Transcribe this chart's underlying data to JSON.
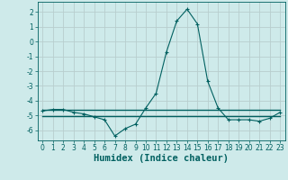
{
  "xlabel": "Humidex (Indice chaleur)",
  "background_color": "#ceeaea",
  "grid_color": "#b8cece",
  "line_color": "#006060",
  "x": [
    0,
    1,
    2,
    3,
    4,
    5,
    6,
    7,
    8,
    9,
    10,
    11,
    12,
    13,
    14,
    15,
    16,
    17,
    18,
    19,
    20,
    21,
    22,
    23
  ],
  "y_main": [
    -4.7,
    -4.6,
    -4.6,
    -4.8,
    -4.9,
    -5.1,
    -5.3,
    -6.4,
    -5.9,
    -5.6,
    -4.5,
    -3.5,
    -0.7,
    1.4,
    2.2,
    1.2,
    -2.7,
    -4.5,
    -5.3,
    -5.3,
    -5.3,
    -5.4,
    -5.2,
    -4.8
  ],
  "y_flat1": [
    -4.6,
    -4.6,
    -4.6,
    -4.6,
    -4.6,
    -4.6,
    -4.6,
    -4.6,
    -4.6,
    -4.6,
    -4.6,
    -4.6,
    -4.6,
    -4.6,
    -4.6,
    -4.6,
    -4.6,
    -4.6,
    -4.6,
    -4.6,
    -4.6,
    -4.6,
    -4.6,
    -4.6
  ],
  "y_flat2": [
    -5.05,
    -5.05,
    -5.05,
    -5.05,
    -5.05,
    -5.05,
    -5.05,
    -5.05,
    -5.05,
    -5.05,
    -5.05,
    -5.05,
    -5.05,
    -5.05,
    -5.05,
    -5.05,
    -5.05,
    -5.05,
    -5.05,
    -5.05,
    -5.05,
    -5.05,
    -5.05,
    -5.05
  ],
  "xlim": [
    -0.5,
    23.5
  ],
  "ylim": [
    -6.7,
    2.7
  ],
  "yticks": [
    2,
    1,
    0,
    -1,
    -2,
    -3,
    -4,
    -5,
    -6
  ],
  "xticks": [
    0,
    1,
    2,
    3,
    4,
    5,
    6,
    7,
    8,
    9,
    10,
    11,
    12,
    13,
    14,
    15,
    16,
    17,
    18,
    19,
    20,
    21,
    22,
    23
  ],
  "tick_fontsize": 5.5,
  "xlabel_fontsize": 7.5,
  "tick_color": "#006060"
}
